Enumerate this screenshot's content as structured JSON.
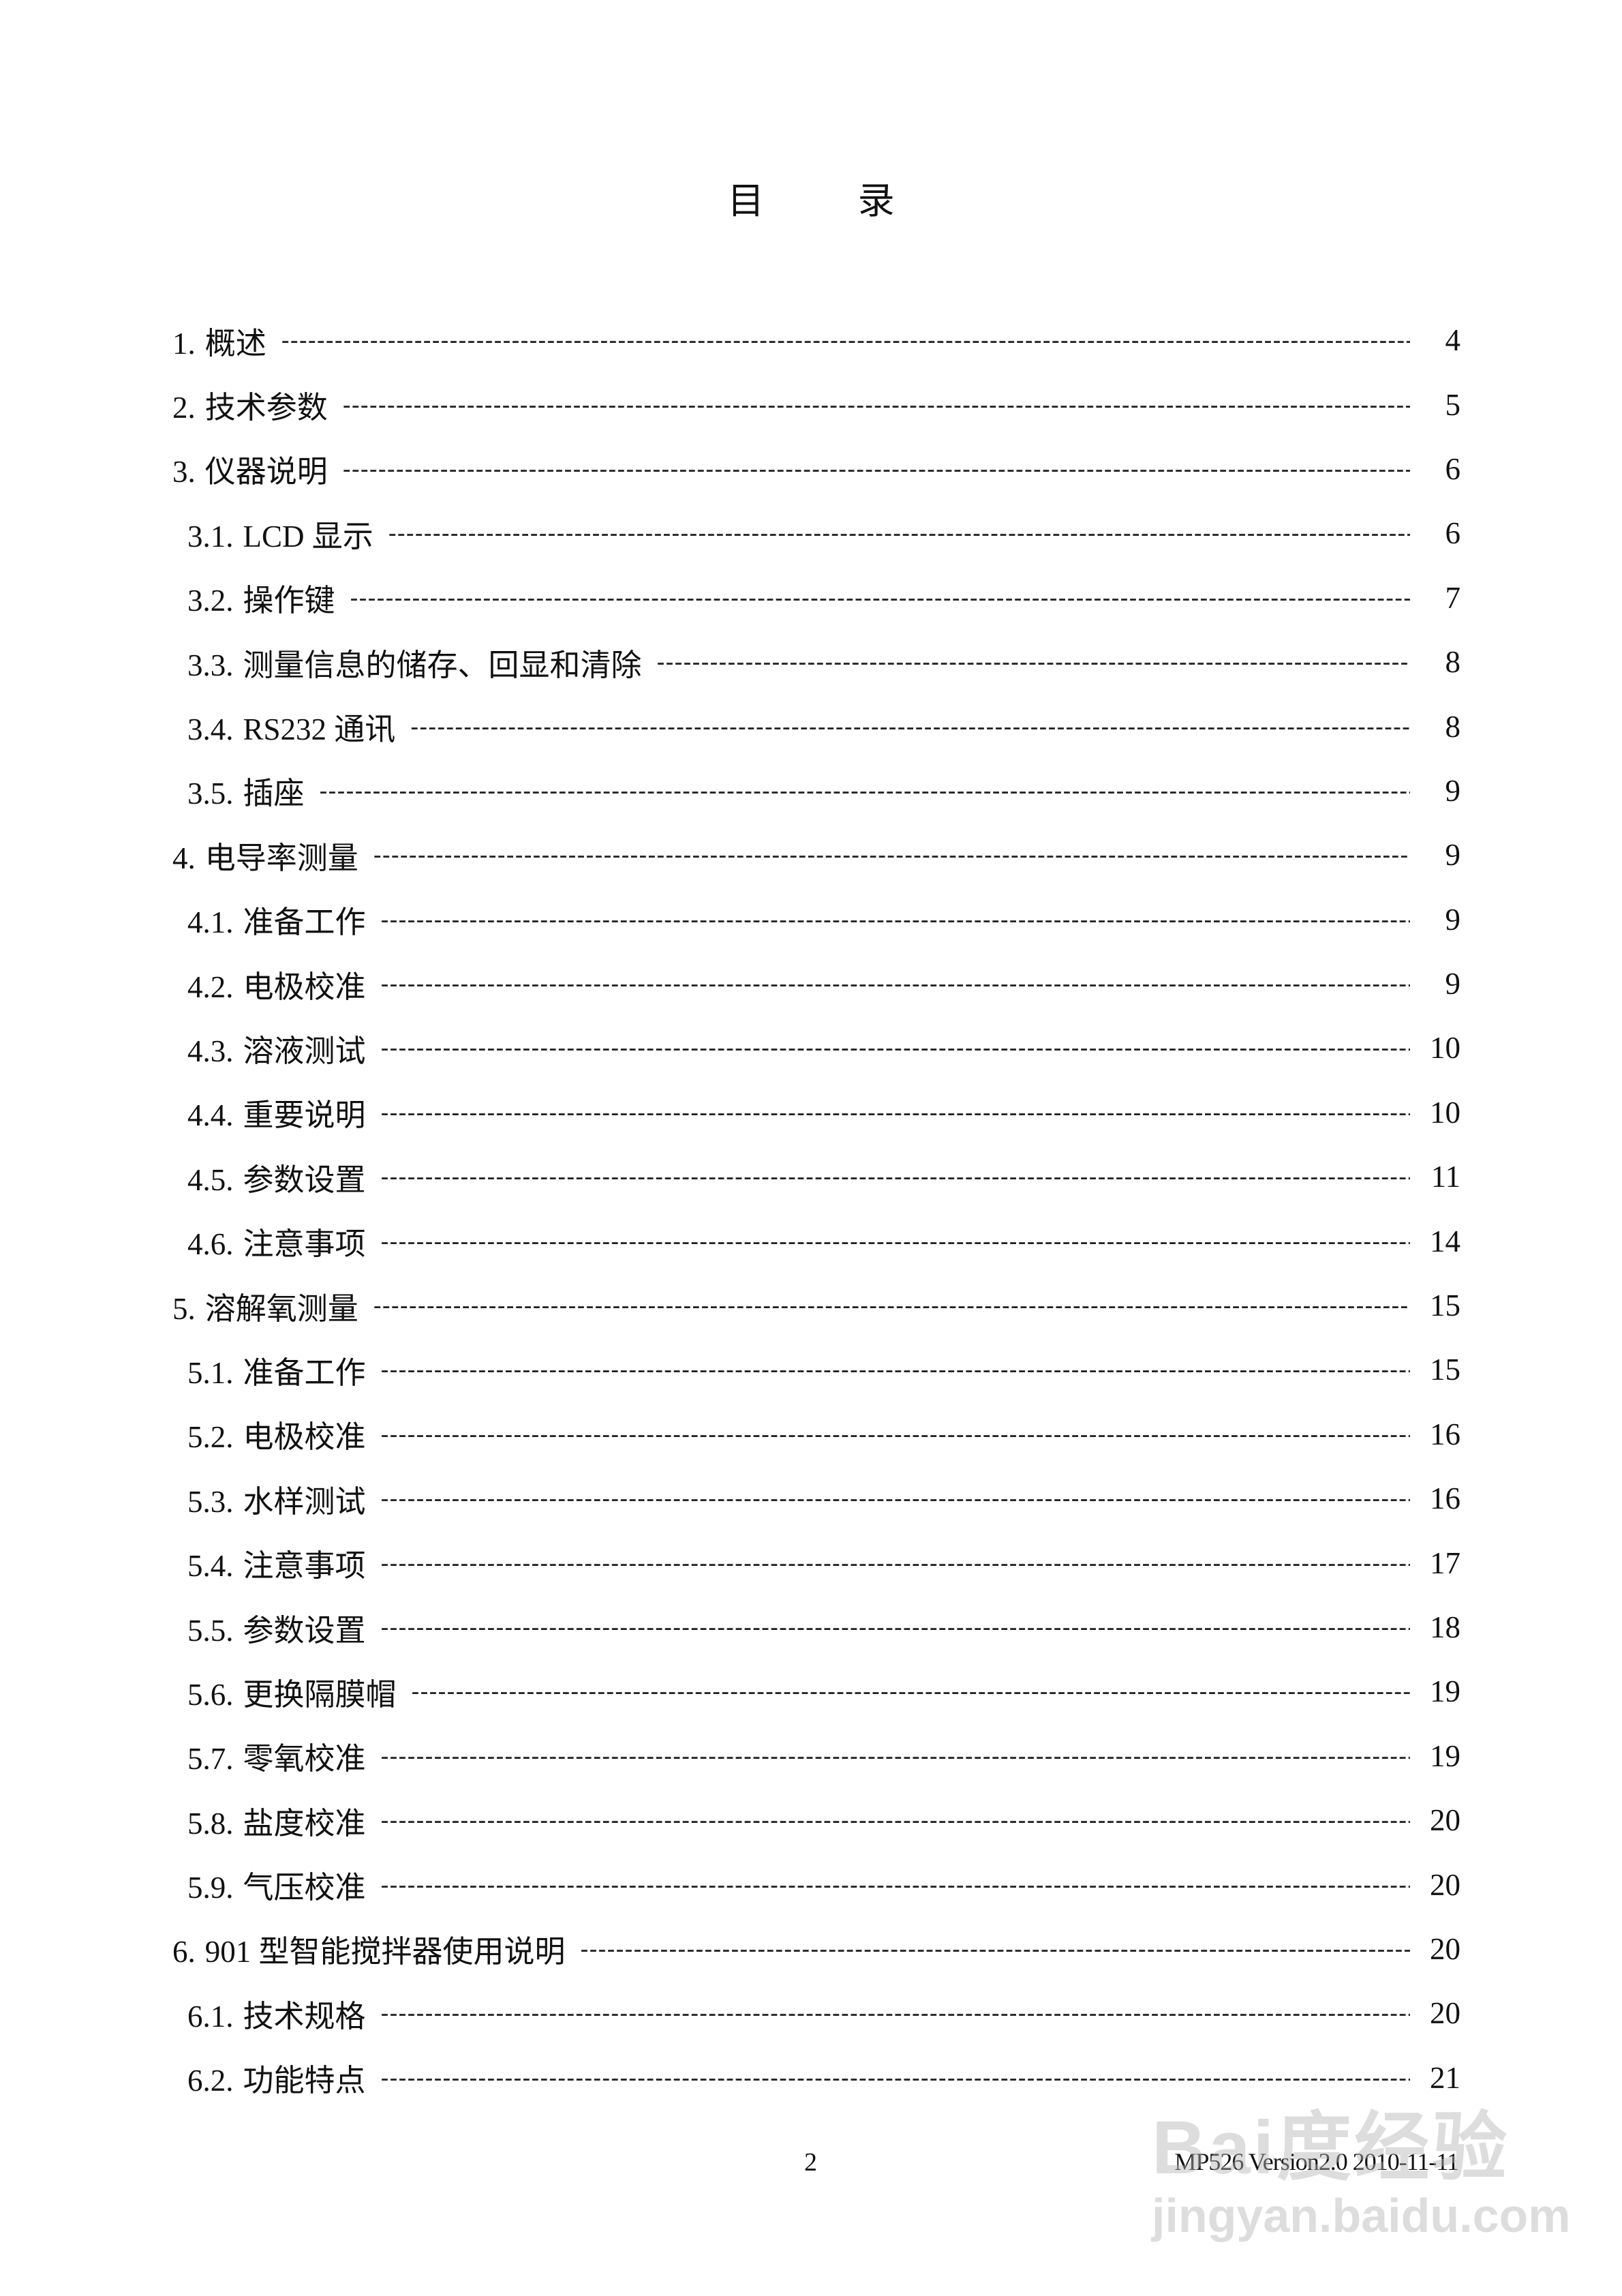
{
  "title": "目 录",
  "toc": [
    {
      "num": "1.",
      "label": "概述",
      "page": "4",
      "level": 1
    },
    {
      "num": "2.",
      "label": "技术参数",
      "page": "5",
      "level": 1
    },
    {
      "num": "3.",
      "label": "仪器说明",
      "page": "6",
      "level": 1
    },
    {
      "num": "3.1.",
      "label": "LCD 显示",
      "page": "6",
      "level": 2
    },
    {
      "num": "3.2.",
      "label": "操作键",
      "page": "7",
      "level": 2
    },
    {
      "num": "3.3.",
      "label": "测量信息的储存、回显和清除",
      "page": "8",
      "level": 2
    },
    {
      "num": "3.4.",
      "label": "RS232 通讯",
      "page": "8",
      "level": 2
    },
    {
      "num": "3.5.",
      "label": "插座",
      "page": "9",
      "level": 2
    },
    {
      "num": "4.",
      "label": "电导率测量",
      "page": "9",
      "level": 1
    },
    {
      "num": "4.1.",
      "label": "准备工作",
      "page": "9",
      "level": 2
    },
    {
      "num": "4.2.",
      "label": "电极校准",
      "page": "9",
      "level": 2
    },
    {
      "num": "4.3.",
      "label": "溶液测试",
      "page": "10",
      "level": 2
    },
    {
      "num": "4.4.",
      "label": "重要说明",
      "page": "10",
      "level": 2
    },
    {
      "num": "4.5.",
      "label": "参数设置",
      "page": "11",
      "level": 2
    },
    {
      "num": "4.6.",
      "label": "注意事项",
      "page": "14",
      "level": 2
    },
    {
      "num": "5.",
      "label": "溶解氧测量",
      "page": "15",
      "level": 1
    },
    {
      "num": "5.1.",
      "label": "准备工作",
      "page": "15",
      "level": 2
    },
    {
      "num": "5.2.",
      "label": "电极校准",
      "page": "16",
      "level": 2
    },
    {
      "num": "5.3.",
      "label": "水样测试",
      "page": "16",
      "level": 2
    },
    {
      "num": "5.4.",
      "label": "注意事项",
      "page": "17",
      "level": 2
    },
    {
      "num": "5.5.",
      "label": "参数设置",
      "page": "18",
      "level": 2
    },
    {
      "num": "5.6.",
      "label": "更换隔膜帽",
      "page": "19",
      "level": 2
    },
    {
      "num": "5.7.",
      "label": "零氧校准",
      "page": "19",
      "level": 2
    },
    {
      "num": "5.8.",
      "label": "盐度校准",
      "page": "20",
      "level": 2
    },
    {
      "num": "5.9.",
      "label": "气压校准",
      "page": "20",
      "level": 2
    },
    {
      "num": "6.",
      "label": "901 型智能搅拌器使用说明",
      "page": "20",
      "level": 1
    },
    {
      "num": "6.1.",
      "label": "技术规格",
      "page": "20",
      "level": 2
    },
    {
      "num": "6.2.",
      "label": "功能特点",
      "page": "21",
      "level": 2
    }
  ],
  "footer": {
    "page_number": "2",
    "version": "MP526 Version2.0 2010-11-11"
  },
  "watermark": {
    "line1": "Bai度经验",
    "line2": "jingyan.baidu.com"
  }
}
